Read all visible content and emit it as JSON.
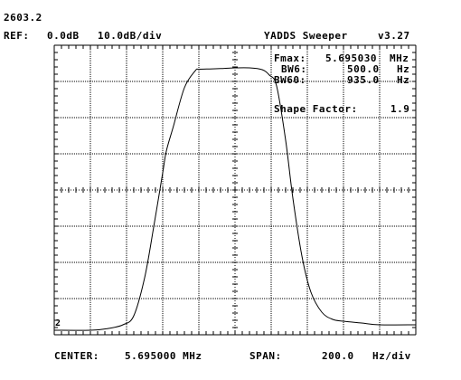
{
  "header": {
    "counter": "2603.2",
    "ref_label": "REF:",
    "ref_level": "0.0dB",
    "scale": "10.0dB/div",
    "app_name": "YADDS Sweeper",
    "version": "v3.27"
  },
  "measurements": {
    "fmax_label": "Fmax:",
    "fmax_value": "5.695030",
    "fmax_unit": "MHz",
    "bw6_label": "BW6:",
    "bw6_value": "500.0",
    "bw6_unit": "Hz",
    "bw60_label": "BW60:",
    "bw60_value": "935.0",
    "bw60_unit": "Hz",
    "shape_factor_label": "Shape Factor:",
    "shape_factor_value": "1.9"
  },
  "trace_marker": "2",
  "footer": {
    "center_label": "CENTER:",
    "center_value": "5.695000 MHz",
    "span_label": "SPAN:",
    "span_value": "200.0",
    "span_unit": "Hz/div"
  },
  "colors": {
    "background": "#ffffff",
    "grid": "#000000",
    "trace": "#000000"
  },
  "chart_data": {
    "type": "line",
    "x_divisions": 10,
    "y_divisions": 8,
    "reference_db": 0,
    "db_per_div": 10,
    "span_hz_per_div": 200,
    "center_mhz": 5.695,
    "series": [
      {
        "x_div": [
          0,
          1.0,
          1.5,
          1.9,
          2.2,
          2.5,
          2.75,
          3.0,
          3.1,
          3.3,
          3.6,
          3.9,
          4.0,
          4.3,
          4.6,
          5.0,
          5.4,
          5.75,
          5.95,
          6.15,
          6.4,
          6.6,
          6.85,
          7.1,
          7.4,
          7.7,
          8.0,
          8.5,
          9.0,
          10.0
        ],
        "db": [
          -72.5,
          -72.5,
          -72.0,
          -71.0,
          -68.5,
          -58,
          -44,
          -29,
          -23,
          -16,
          -5.5,
          -0.8,
          -0.4,
          -0.3,
          -0.2,
          0.0,
          0.0,
          -0.5,
          -2.0,
          -5.0,
          -20,
          -36,
          -52,
          -62,
          -67.5,
          -69.5,
          -70.0,
          -70.5,
          -71.0,
          -71.0
        ]
      }
    ]
  }
}
